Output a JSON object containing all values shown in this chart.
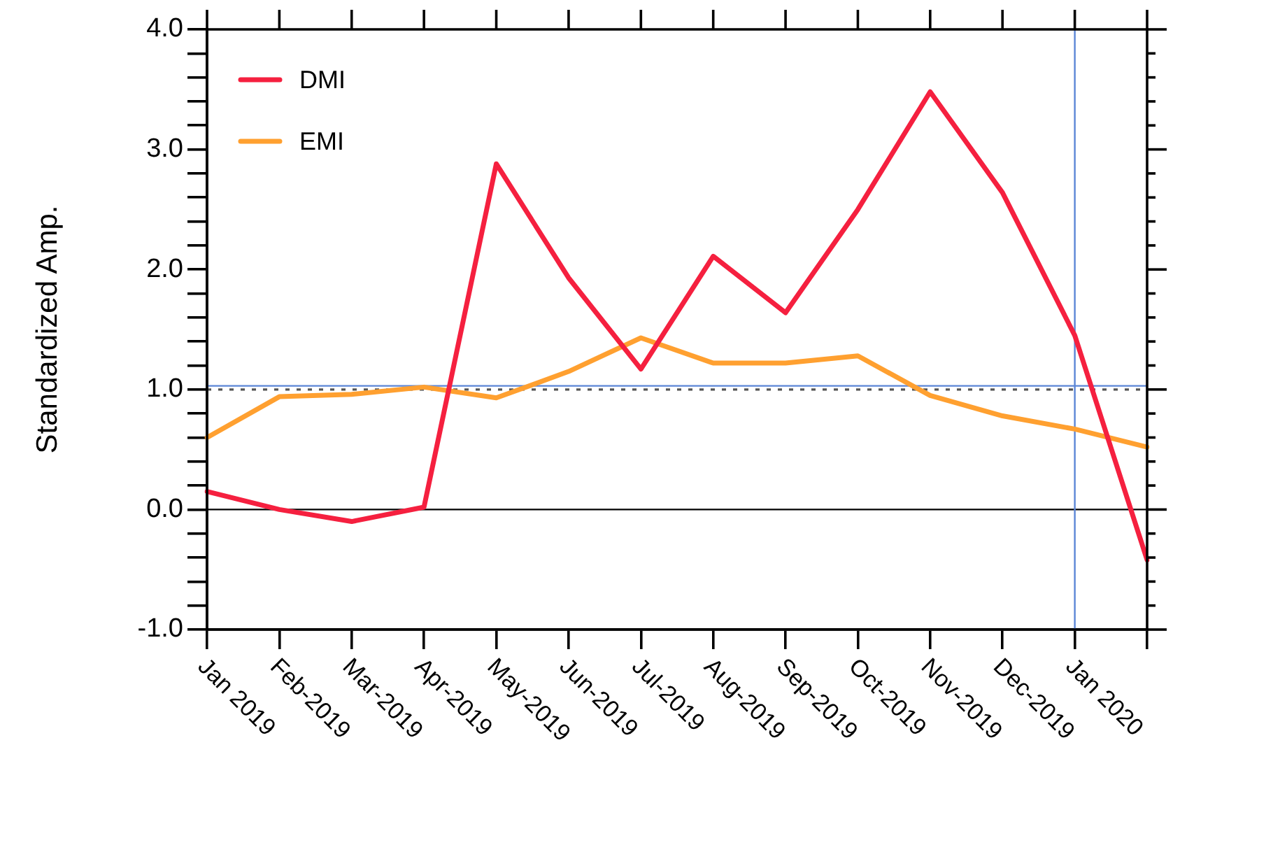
{
  "chart_data": {
    "type": "line",
    "ylabel": "Standardized Amp.",
    "categories": [
      "Jan 2019",
      "Feb-2019",
      "Mar-2019",
      "Apr-2019",
      "May-2019",
      "Jun-2019",
      "Jul-2019",
      "Aug-2019",
      "Sep-2019",
      "Oct-2019",
      "Nov-2019",
      "Dec-2019",
      "Jan 2020",
      null
    ],
    "series": [
      {
        "name": "DMI",
        "color": "#f5203f",
        "values": [
          0.15,
          0.0,
          -0.1,
          0.02,
          2.88,
          1.93,
          1.17,
          2.11,
          1.64,
          2.5,
          3.48,
          2.64,
          1.45,
          -0.42
        ]
      },
      {
        "name": "EMI",
        "color": "#ffa030",
        "values": [
          0.6,
          0.94,
          0.96,
          1.02,
          0.93,
          1.15,
          1.43,
          1.22,
          1.22,
          1.28,
          0.95,
          0.78,
          0.67,
          0.52
        ]
      }
    ],
    "ylim": [
      -1,
      4
    ],
    "yticks": [
      {
        "value": -1,
        "label": "-1.0"
      },
      {
        "value": -0.8,
        "label": null
      },
      {
        "value": -0.6,
        "label": null
      },
      {
        "value": -0.4,
        "label": null
      },
      {
        "value": -0.2,
        "label": null
      },
      {
        "value": 0,
        "label": "0.0"
      },
      {
        "value": 0.2,
        "label": null
      },
      {
        "value": 0.4,
        "label": null
      },
      {
        "value": 0.6,
        "label": null
      },
      {
        "value": 0.8,
        "label": null
      },
      {
        "value": 1,
        "label": "1.0"
      },
      {
        "value": 1.2,
        "label": null
      },
      {
        "value": 1.4,
        "label": null
      },
      {
        "value": 1.6,
        "label": null
      },
      {
        "value": 1.8,
        "label": null
      },
      {
        "value": 2,
        "label": "2.0"
      },
      {
        "value": 2.2,
        "label": null
      },
      {
        "value": 2.4,
        "label": null
      },
      {
        "value": 2.6,
        "label": null
      },
      {
        "value": 2.8,
        "label": null
      },
      {
        "value": 3,
        "label": "3.0"
      },
      {
        "value": 3.2,
        "label": null
      },
      {
        "value": 3.4,
        "label": null
      },
      {
        "value": 3.6,
        "label": null
      },
      {
        "value": 3.8,
        "label": null
      },
      {
        "value": 4,
        "label": "4.0"
      }
    ],
    "ref_lines": [
      {
        "axis": "y",
        "value": 0,
        "color": "#000000",
        "line_style": "solid"
      },
      {
        "axis": "y",
        "value": 1,
        "color": "#555555",
        "line_style": "dotted"
      },
      {
        "axis": "y",
        "value": 1.03,
        "color": "#5b85d6",
        "line_style": "solid"
      },
      {
        "axis": "x",
        "value": "Jan 2020",
        "color": "#5b85d6",
        "line_style": "solid"
      }
    ],
    "grid": false,
    "legend": "top left",
    "marker": "none",
    "line_style": "solid"
  }
}
